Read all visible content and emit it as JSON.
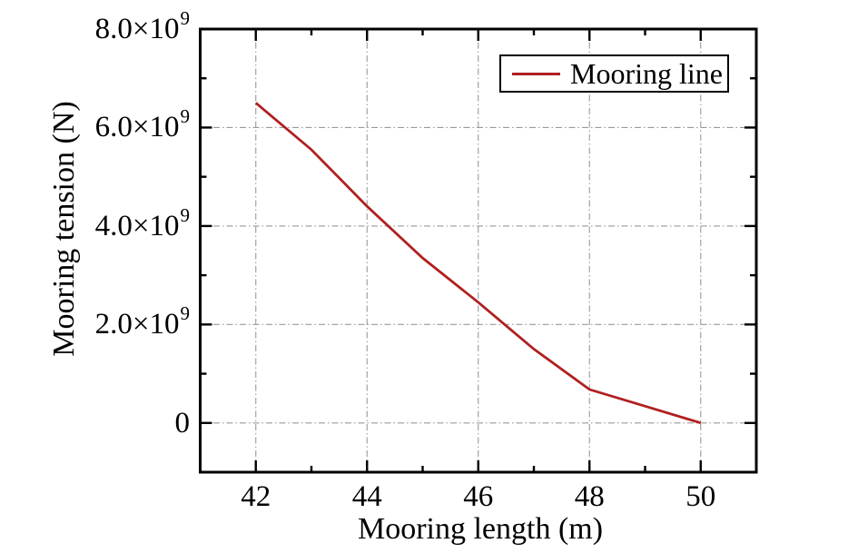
{
  "chart_data": {
    "type": "line",
    "title": "",
    "xlabel": "Mooring length (m)",
    "ylabel": "Mooring tension (N)",
    "xlim": [
      41,
      51
    ],
    "ylim": [
      -1000000000.0,
      8000000000.0
    ],
    "grid": {
      "enabled": true,
      "style": "dash-dot",
      "x_values": [
        42,
        44,
        46,
        48,
        50
      ],
      "y_values": [
        0,
        2000000000.0,
        4000000000.0,
        6000000000.0
      ]
    },
    "x_major_ticks": [
      42,
      44,
      46,
      48,
      50
    ],
    "x_minor_ticks": [
      43,
      45,
      47,
      49
    ],
    "x_tick_labels": [
      "42",
      "44",
      "46",
      "48",
      "50"
    ],
    "y_major_ticks": [
      0,
      2000000000.0,
      4000000000.0,
      6000000000.0,
      8000000000.0
    ],
    "y_minor_ticks": [
      1000000000.0,
      3000000000.0,
      5000000000.0,
      7000000000.0
    ],
    "y_tick_labels": [
      {
        "text": "0",
        "sup": ""
      },
      {
        "text": "2.0×10",
        "sup": "9"
      },
      {
        "text": "4.0×10",
        "sup": "9"
      },
      {
        "text": "6.0×10",
        "sup": "9"
      },
      {
        "text": "8.0×10",
        "sup": "9"
      }
    ],
    "series": [
      {
        "name": "Mooring line",
        "color": "#b02020",
        "x": [
          42,
          43,
          44,
          45,
          46,
          47,
          48,
          49,
          50
        ],
        "y": [
          6500000000.0,
          5550000000.0,
          4400000000.0,
          3350000000.0,
          2450000000.0,
          1500000000.0,
          680000000.0,
          340000000.0,
          0
        ]
      }
    ],
    "legend": {
      "position": "top-right",
      "entries": [
        {
          "label": "Mooring line",
          "color": "#b02020"
        }
      ]
    },
    "colors": {
      "line": "#b02020",
      "grid": "#9a9a9a",
      "axis": "#000000",
      "text": "#000000",
      "background": "#ffffff"
    }
  }
}
